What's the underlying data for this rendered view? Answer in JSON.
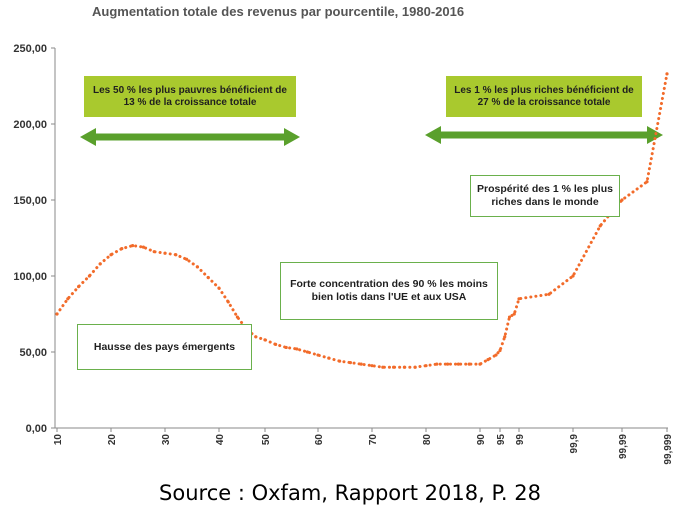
{
  "chart_data": {
    "type": "line",
    "title": "Augmentation totale des revenus par pourcentile, 1980-2016",
    "xlabel": "",
    "ylabel": "",
    "ylim": [
      0,
      250
    ],
    "yticks": [
      "0,00",
      "50,00",
      "100,00",
      "150,00",
      "200,00",
      "250,00"
    ],
    "xticks": [
      "10",
      "20",
      "30",
      "40",
      "50",
      "60",
      "70",
      "80",
      "90",
      "95",
      "99",
      "99,9",
      "99,99",
      "99,999"
    ],
    "grid": false,
    "legend": "none",
    "series": [
      {
        "color": "#f26b2a",
        "x": [
          10,
          12,
          14,
          16,
          18,
          20,
          22,
          24,
          26,
          28,
          30,
          32,
          34,
          36,
          38,
          40,
          42,
          44,
          46,
          48,
          50,
          52,
          54,
          56,
          58,
          60,
          62,
          64,
          66,
          68,
          70,
          72,
          74,
          76,
          78,
          80,
          82,
          84,
          86,
          88,
          90,
          92,
          94,
          95,
          96,
          97,
          98,
          99,
          99.5,
          99.9,
          99.95,
          99.99,
          99.995,
          99.999
        ],
        "values": [
          75,
          85,
          93,
          100,
          108,
          114,
          118,
          120,
          119,
          116,
          115,
          114,
          111,
          106,
          99,
          92,
          83,
          73,
          65,
          60,
          58,
          55,
          53,
          52,
          50,
          48,
          46,
          44,
          43,
          42,
          41,
          40,
          40,
          40,
          40,
          41,
          42,
          42,
          42,
          42,
          42,
          45,
          48,
          51,
          60,
          73,
          75,
          85,
          88,
          100,
          133,
          150,
          162,
          233
        ]
      }
    ],
    "annotations": {
      "poor_half": "Les 50 % les plus pauvres bénéficient de 13 % de la croissance totale",
      "top_one": "Les 1 % les plus riches bénéficient de 27 % de la croissance totale",
      "prosperity": "Prospérité des 1 % les plus riches dans le monde",
      "concentration": "Forte concentration des 90 % les moins bien lotis dans l'UE et aux USA",
      "emerging": "Hausse des pays émergents"
    },
    "arrow_color": "#5aa02c",
    "box_color": "#a9c92e"
  },
  "source": "Source : Oxfam, Rapport 2018, P. 28"
}
